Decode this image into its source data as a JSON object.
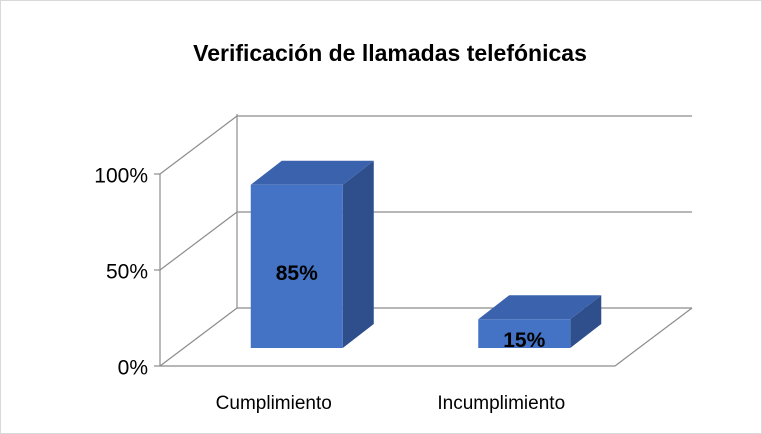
{
  "chart_data": {
    "type": "bar3d",
    "title": "Verificación de llamadas telefónicas",
    "categories": [
      "Cumplimiento",
      "Incumplimiento"
    ],
    "values": [
      85,
      15
    ],
    "value_labels": [
      "85%",
      "15%"
    ],
    "color": "#4472c4",
    "ylim": [
      0,
      100
    ],
    "yticks": [
      {
        "value": 0,
        "label": "0%"
      },
      {
        "value": 50,
        "label": "50%"
      },
      {
        "value": 100,
        "label": "100%"
      }
    ],
    "grid": true
  }
}
